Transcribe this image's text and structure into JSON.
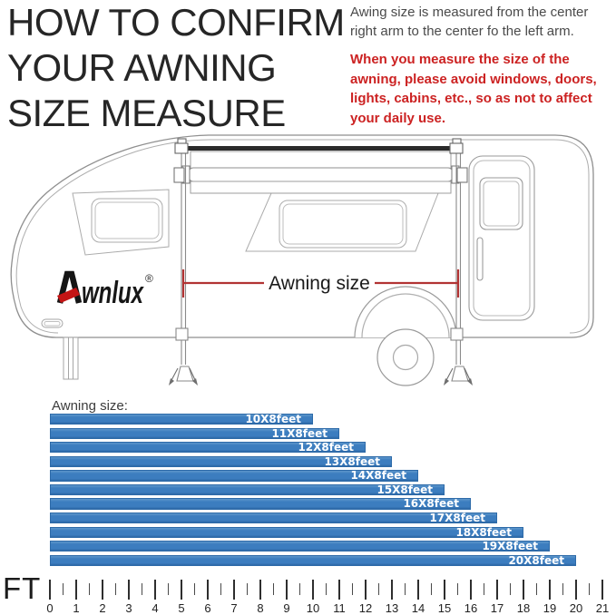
{
  "header": {
    "title": "HOW TO CONFIRM\nYOUR AWNING\nSIZE MEASURE"
  },
  "info": {
    "note": "Awing size is measured from the center right arm to the center fo the left arm.",
    "warning": "When you measure the size of the awning, please avoid windows, doors, lights, cabins, etc., so as not to affect your daily use."
  },
  "diagram": {
    "measure_label": "Awning size",
    "logo": {
      "text": "wnlux",
      "registered": "®"
    },
    "colors": {
      "measure_line_red": "#b23434",
      "logo_red": "#c41414"
    }
  },
  "chart_data": {
    "type": "bar",
    "orientation": "horizontal",
    "title": "Awning size:",
    "categories": [
      "10X8feet",
      "11X8feet",
      "12X8feet",
      "13X8feet",
      "14X8feet",
      "15X8feet",
      "16X8feet",
      "17X8feet",
      "18X8feet",
      "19X8feet",
      "20X8feet"
    ],
    "values": [
      10,
      11,
      12,
      13,
      14,
      15,
      16,
      17,
      18,
      19,
      20
    ],
    "unit_label": "FT",
    "axis": {
      "min": 0,
      "max": 21,
      "tick_labels": [
        0,
        1,
        2,
        3,
        4,
        5,
        6,
        7,
        8,
        9,
        10,
        11,
        12,
        13,
        14,
        15,
        16,
        17,
        18,
        19,
        20,
        21
      ]
    },
    "bar_color": "#3c7dbf",
    "bar_border_color": "#2d6aa8",
    "label_color": "#ffffff",
    "grid": false,
    "legend": false
  }
}
